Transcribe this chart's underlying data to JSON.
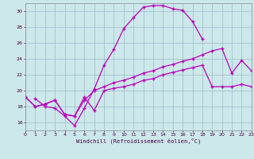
{
  "xlabel": "Windchill (Refroidissement éolien,°C)",
  "bg_color": "#cce8ea",
  "line_color": "#bb00bb",
  "grid_color": "#99bbcc",
  "xlim": [
    0,
    23
  ],
  "ylim": [
    15,
    31
  ],
  "yticks": [
    16,
    18,
    20,
    22,
    24,
    26,
    28,
    30
  ],
  "xticks": [
    0,
    1,
    2,
    3,
    4,
    5,
    6,
    7,
    8,
    9,
    10,
    11,
    12,
    13,
    14,
    15,
    16,
    17,
    18,
    19,
    20,
    21,
    22,
    23
  ],
  "series1_x": [
    1,
    2,
    3,
    4,
    5,
    6,
    7,
    8,
    9,
    10,
    11,
    12,
    13,
    14,
    15,
    16,
    17,
    18
  ],
  "series1_y": [
    19.0,
    18.0,
    17.8,
    16.8,
    15.6,
    17.8,
    20.2,
    23.2,
    25.2,
    27.8,
    29.2,
    30.5,
    30.7,
    30.7,
    30.3,
    30.1,
    28.7,
    26.5
  ],
  "series2_x": [
    0,
    1,
    2,
    3,
    4,
    5,
    6,
    7,
    8,
    9,
    10,
    11,
    12,
    13,
    14,
    15,
    16,
    17,
    18,
    19,
    20,
    21,
    22,
    23
  ],
  "series2_y": [
    19.2,
    18.0,
    18.3,
    18.8,
    17.0,
    16.8,
    18.8,
    20.0,
    20.5,
    21.0,
    21.3,
    21.7,
    22.2,
    22.5,
    23.0,
    23.3,
    23.7,
    24.0,
    24.5,
    25.0,
    25.3,
    22.2,
    23.8,
    22.5
  ],
  "series3_x": [
    0,
    1,
    2,
    3,
    4,
    5,
    6,
    7,
    8,
    9,
    10,
    11,
    12,
    13,
    14,
    15,
    16,
    17,
    18,
    19,
    20,
    21,
    22,
    23
  ],
  "series3_y": [
    19.2,
    18.0,
    18.3,
    18.8,
    17.0,
    16.8,
    19.2,
    17.5,
    20.0,
    20.3,
    20.5,
    20.8,
    21.3,
    21.5,
    22.0,
    22.3,
    22.6,
    22.9,
    23.2,
    20.5,
    20.5,
    20.5,
    20.8,
    20.5
  ]
}
